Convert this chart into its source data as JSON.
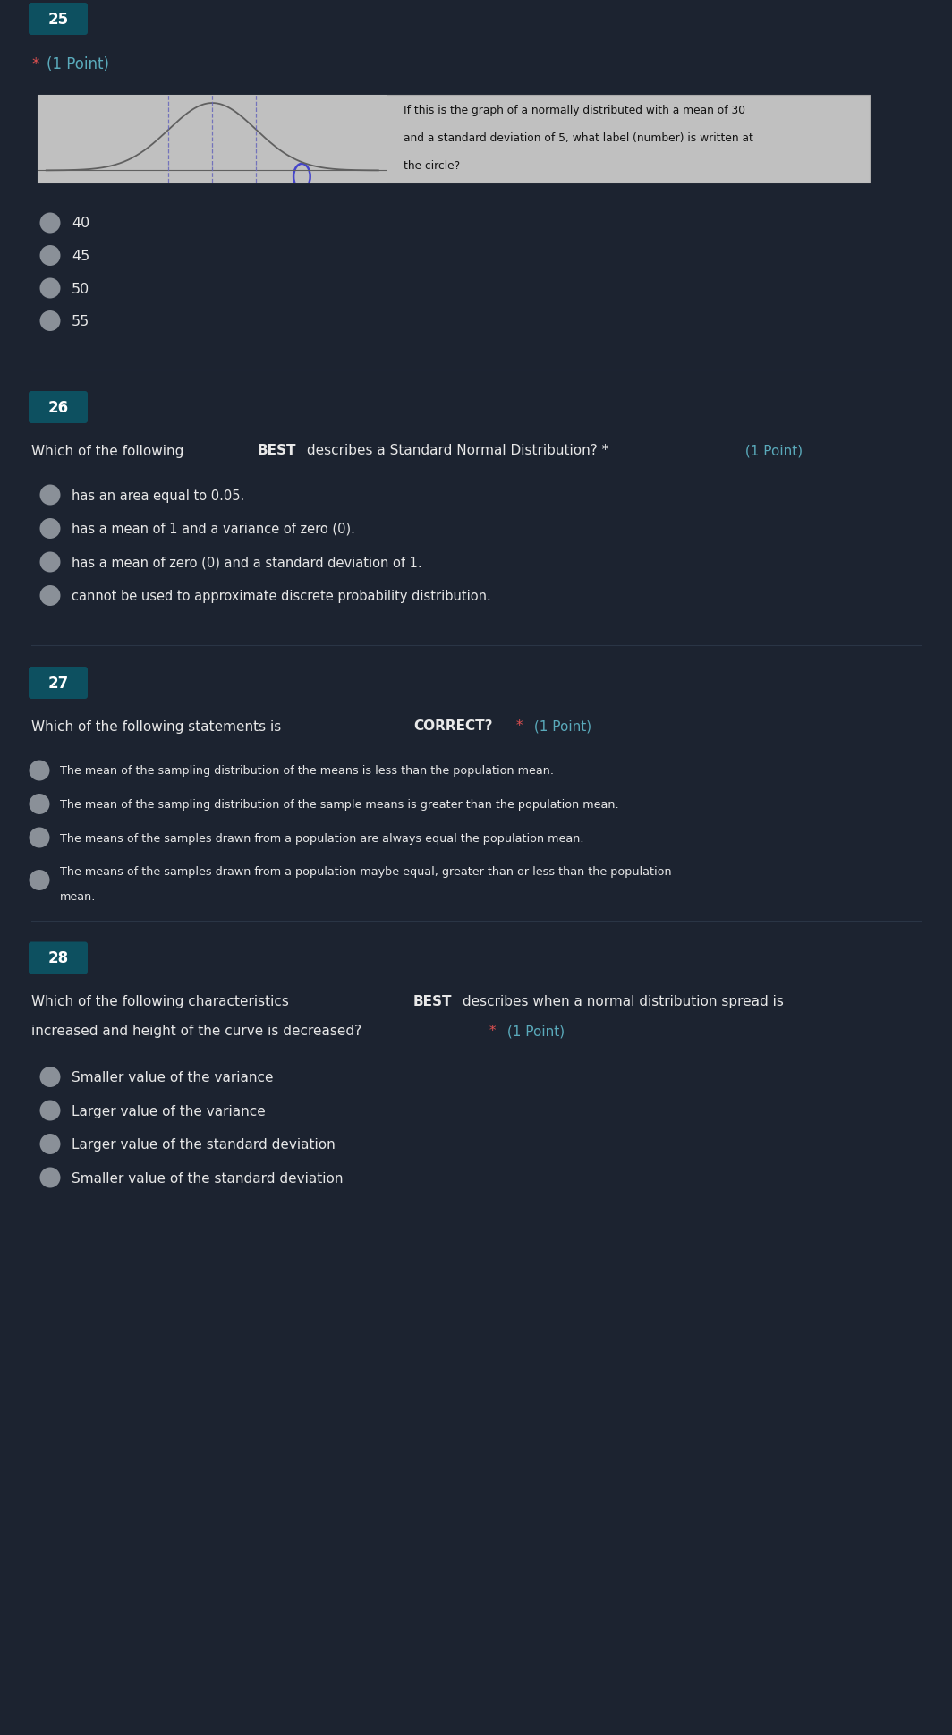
{
  "bg_color": "#1c2330",
  "text_color": "#e8e8e8",
  "radio_color": "#8a9098",
  "red_star_color": "#e05050",
  "point_color": "#5aaabb",
  "number_bg": "#0d5060",
  "img_box_bg": "#c0c0c0",
  "img_box_border": "#aaaaaa",
  "sep_color": "#2a3545",
  "q25_number": "25",
  "q25_point_text": "(1 Point)",
  "q25_image_text_line1": "If this is the graph of a normally distributed with a mean of 30",
  "q25_image_text_line2": "and a standard deviation of 5, what label (number) is written at",
  "q25_image_text_line3": "the circle?",
  "q25_options": [
    "40",
    "45",
    "50",
    "55"
  ],
  "q26_number": "26",
  "q26_options": [
    "has an area equal to 0.05.",
    "has a mean of 1 and a variance of zero (0).",
    "has a mean of zero (0) and a standard deviation of 1.",
    "cannot be used to approximate discrete probability distribution."
  ],
  "q27_number": "27",
  "q27_options": [
    "The mean of the sampling distribution of the means is less than the population mean.",
    "The mean of the sampling distribution of the sample means is greater than the population mean.",
    "The means of the samples drawn from a population are always equal the population mean.",
    "The means of the samples drawn from a population maybe equal, greater than or less than the population mean."
  ],
  "q28_number": "28",
  "q28_options": [
    "Smaller value of the variance",
    "Larger value of the variance",
    "Larger value of the standard deviation",
    "Smaller value of the standard deviation"
  ],
  "figwidth": 10.64,
  "figheight": 19.4,
  "dpi": 100
}
